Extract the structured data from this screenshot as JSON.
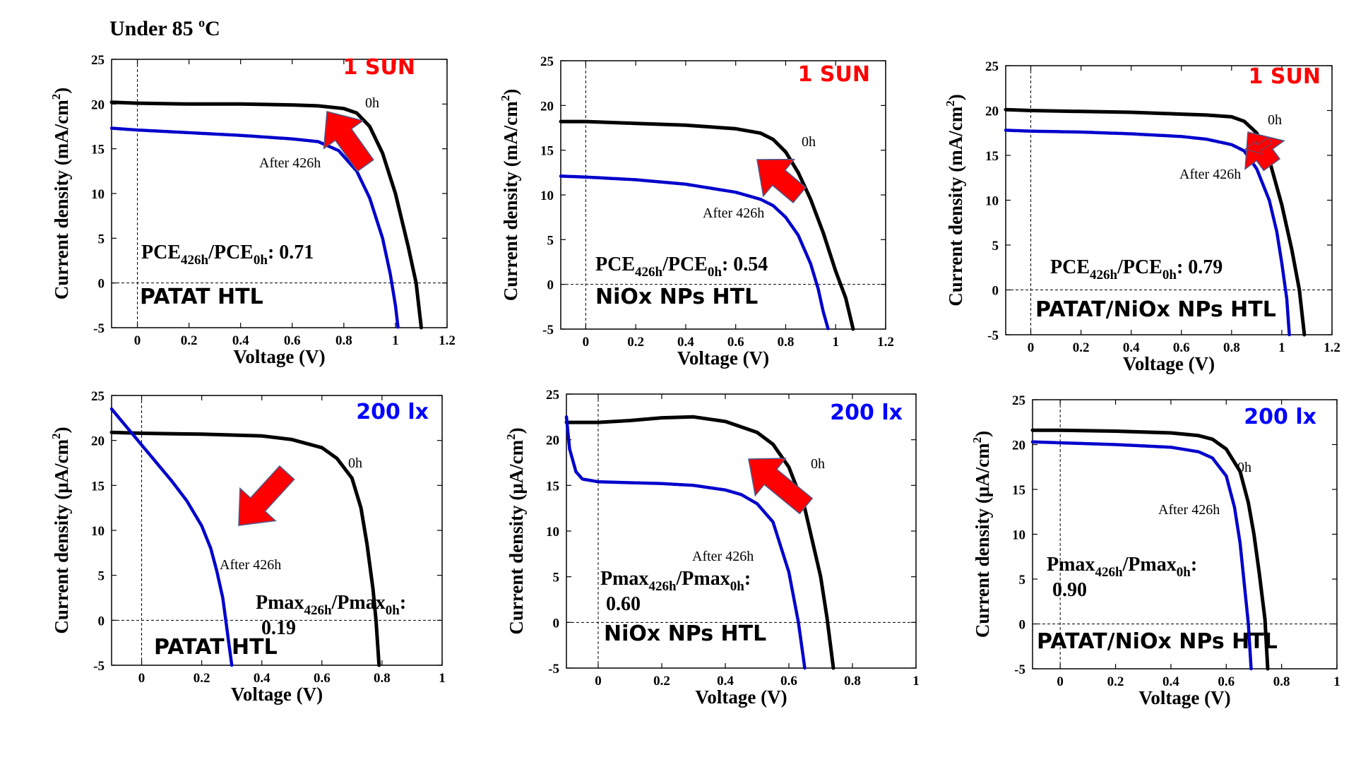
{
  "header": {
    "title": "Under 85 ",
    "title_sup": "o",
    "title_unit": "C"
  },
  "chart_data": [
    {
      "type": "line",
      "condition": "1 SUN",
      "condition_color": "#ff0000",
      "device": "PATAT HTL",
      "metric_base": "PCE",
      "metric_value": "0.71",
      "metric_inline": true,
      "xlabel": "Voltage (V)",
      "ylabel_prefix": "Current density (mA/cm",
      "ylabel_sup": "2",
      "ylabel_suffix": ")",
      "xlim": [
        -0.1,
        1.2
      ],
      "ylim": [
        -5,
        25
      ],
      "xticks": [
        0,
        0.2,
        0.4,
        0.6,
        0.8,
        1,
        1.2
      ],
      "xtick_labels": [
        "0",
        "0.2",
        "0.4",
        "0.6",
        "0.8",
        "1",
        "1.2"
      ],
      "yticks": [
        -5,
        0,
        5,
        10,
        15,
        20,
        25
      ],
      "ytick_labels": [
        "-5",
        "0",
        "5",
        "10",
        "15",
        "20",
        "25"
      ],
      "series": [
        {
          "name": "0h",
          "color": "#000000",
          "x": [
            -0.1,
            0,
            0.2,
            0.4,
            0.6,
            0.7,
            0.8,
            0.85,
            0.9,
            0.95,
            1.0,
            1.05,
            1.08,
            1.1
          ],
          "y": [
            20.2,
            20.1,
            20.0,
            20.0,
            19.9,
            19.8,
            19.5,
            19.0,
            17.5,
            14.5,
            10.0,
            4.0,
            0.0,
            -5.0
          ]
        },
        {
          "name": "After 426h",
          "color": "#0000cc",
          "x": [
            -0.1,
            0,
            0.2,
            0.4,
            0.6,
            0.7,
            0.78,
            0.85,
            0.9,
            0.95,
            0.98,
            1.0,
            1.01
          ],
          "y": [
            17.3,
            17.1,
            16.8,
            16.5,
            16.1,
            15.8,
            14.8,
            12.5,
            9.5,
            5.0,
            1.0,
            -2.5,
            -5.0
          ]
        }
      ]
    },
    {
      "type": "line",
      "condition": "1 SUN",
      "condition_color": "#ff0000",
      "device": "NiOx NPs HTL",
      "metric_base": "PCE",
      "metric_value": "0.54",
      "metric_inline": true,
      "xlabel": "Voltage (V)",
      "ylabel_prefix": "Current density (mA/cm",
      "ylabel_sup": "2",
      "ylabel_suffix": ")",
      "xlim": [
        -0.1,
        1.2
      ],
      "ylim": [
        -5,
        25
      ],
      "xticks": [
        0,
        0.2,
        0.4,
        0.6,
        0.8,
        1,
        1.2
      ],
      "xtick_labels": [
        "0",
        "0.2",
        "0.4",
        "0.6",
        "0.8",
        "1",
        "1.2"
      ],
      "yticks": [
        -5,
        0,
        5,
        10,
        15,
        20,
        25
      ],
      "ytick_labels": [
        "-5",
        "0",
        "5",
        "10",
        "15",
        "20",
        "25"
      ],
      "series": [
        {
          "name": "0h",
          "color": "#000000",
          "x": [
            -0.1,
            0,
            0.2,
            0.4,
            0.6,
            0.7,
            0.75,
            0.8,
            0.85,
            0.9,
            0.95,
            1.0,
            1.04,
            1.07
          ],
          "y": [
            18.2,
            18.2,
            18.0,
            17.8,
            17.4,
            16.9,
            16.2,
            14.8,
            12.5,
            9.5,
            5.8,
            1.5,
            -1.5,
            -5.0
          ]
        },
        {
          "name": "After 426h",
          "color": "#0000cc",
          "x": [
            -0.1,
            0,
            0.2,
            0.4,
            0.6,
            0.7,
            0.75,
            0.8,
            0.85,
            0.9,
            0.93,
            0.95,
            0.97
          ],
          "y": [
            12.1,
            12.0,
            11.7,
            11.2,
            10.3,
            9.5,
            8.8,
            7.5,
            5.5,
            2.3,
            -0.5,
            -3.0,
            -5.0
          ]
        }
      ]
    },
    {
      "type": "line",
      "condition": "1 SUN",
      "condition_color": "#ff0000",
      "device": "PATAT/NiOx NPs HTL",
      "metric_base": "PCE",
      "metric_value": "0.79",
      "metric_inline": true,
      "xlabel": "Voltage (V)",
      "ylabel_prefix": "Current density (mA/cm",
      "ylabel_sup": "2",
      "ylabel_suffix": ")",
      "xlim": [
        -0.1,
        1.2
      ],
      "ylim": [
        -5,
        25
      ],
      "xticks": [
        0,
        0.2,
        0.4,
        0.6,
        0.8,
        1,
        1.2
      ],
      "xtick_labels": [
        "0",
        "0.2",
        "0.4",
        "0.6",
        "0.8",
        "1",
        "1.2"
      ],
      "yticks": [
        -5,
        0,
        5,
        10,
        15,
        20,
        25
      ],
      "ytick_labels": [
        "-5",
        "0",
        "5",
        "10",
        "15",
        "20",
        "25"
      ],
      "series": [
        {
          "name": "0h",
          "color": "#000000",
          "x": [
            -0.1,
            0,
            0.2,
            0.4,
            0.6,
            0.7,
            0.8,
            0.85,
            0.9,
            0.95,
            1.0,
            1.04,
            1.07,
            1.09
          ],
          "y": [
            20.1,
            20.0,
            19.9,
            19.8,
            19.6,
            19.5,
            19.3,
            18.8,
            17.5,
            14.5,
            9.5,
            4.5,
            0.0,
            -5.0
          ]
        },
        {
          "name": "After 426h",
          "color": "#0000cc",
          "x": [
            -0.1,
            0,
            0.2,
            0.4,
            0.6,
            0.7,
            0.8,
            0.85,
            0.9,
            0.95,
            0.98,
            1.0,
            1.02,
            1.03
          ],
          "y": [
            17.8,
            17.7,
            17.6,
            17.4,
            17.1,
            16.8,
            16.2,
            15.5,
            13.5,
            10.0,
            6.5,
            3.0,
            -1.0,
            -5.0
          ]
        }
      ]
    },
    {
      "type": "line",
      "condition": "200 lx",
      "condition_color": "#0000ff",
      "device": "PATAT HTL",
      "metric_base": "Pmax",
      "metric_value": "0.19",
      "metric_inline": false,
      "xlabel": "Voltage (V)",
      "ylabel_prefix": "Current density (μA/cm",
      "ylabel_sup": "2",
      "ylabel_suffix": ")",
      "xlim": [
        -0.1,
        1.0
      ],
      "ylim": [
        -5,
        25
      ],
      "xticks": [
        0,
        0.2,
        0.4,
        0.6,
        0.8,
        1
      ],
      "xtick_labels": [
        "0",
        "0.2",
        "0.4",
        "0.6",
        "0.8",
        "1"
      ],
      "yticks": [
        -5,
        0,
        5,
        10,
        15,
        20,
        25
      ],
      "ytick_labels": [
        "-5",
        "0",
        "5",
        "10",
        "15",
        "20",
        "25"
      ],
      "series": [
        {
          "name": "0h",
          "color": "#000000",
          "x": [
            -0.1,
            0,
            0.2,
            0.4,
            0.5,
            0.6,
            0.65,
            0.7,
            0.73,
            0.75,
            0.77,
            0.78,
            0.79
          ],
          "y": [
            20.9,
            20.8,
            20.7,
            20.5,
            20.1,
            19.2,
            18.0,
            15.8,
            12.5,
            8.5,
            3.5,
            0.0,
            -5.0
          ]
        },
        {
          "name": "After 426h",
          "color": "#0000cc",
          "x": [
            -0.1,
            -0.05,
            0.0,
            0.05,
            0.1,
            0.15,
            0.2,
            0.23,
            0.25,
            0.27,
            0.28,
            0.29,
            0.3
          ],
          "y": [
            23.5,
            21.5,
            19.5,
            17.5,
            15.5,
            13.3,
            10.5,
            8.0,
            5.5,
            2.5,
            0.0,
            -2.5,
            -5.0
          ]
        }
      ]
    },
    {
      "type": "line",
      "condition": "200 lx",
      "condition_color": "#0000ff",
      "device": "NiOx NPs HTL",
      "metric_base": "Pmax",
      "metric_value": "0.60",
      "metric_inline": false,
      "xlabel": "Voltage (V)",
      "ylabel_prefix": "Current density (μA/cm",
      "ylabel_sup": "2",
      "ylabel_suffix": ")",
      "xlim": [
        -0.1,
        1.0
      ],
      "ylim": [
        -5,
        25
      ],
      "xticks": [
        0,
        0.2,
        0.4,
        0.6,
        0.8,
        1
      ],
      "xtick_labels": [
        "0",
        "0.2",
        "0.4",
        "0.6",
        "0.8",
        "1"
      ],
      "yticks": [
        -5,
        0,
        5,
        10,
        15,
        20,
        25
      ],
      "ytick_labels": [
        "-5",
        "0",
        "5",
        "10",
        "15",
        "20",
        "25"
      ],
      "series": [
        {
          "name": "0h",
          "color": "#000000",
          "x": [
            -0.1,
            0,
            0.1,
            0.2,
            0.3,
            0.4,
            0.5,
            0.55,
            0.6,
            0.65,
            0.7,
            0.72,
            0.74
          ],
          "y": [
            21.9,
            21.9,
            22.1,
            22.4,
            22.5,
            22.0,
            20.8,
            19.5,
            17.0,
            12.5,
            5.0,
            0.5,
            -5.0
          ]
        },
        {
          "name": "After 426h",
          "color": "#0000cc",
          "x": [
            -0.1,
            -0.09,
            -0.07,
            -0.05,
            0,
            0.1,
            0.2,
            0.3,
            0.4,
            0.45,
            0.5,
            0.55,
            0.6,
            0.63,
            0.65
          ],
          "y": [
            22.5,
            19.0,
            16.5,
            15.7,
            15.4,
            15.3,
            15.2,
            15.0,
            14.5,
            14.0,
            13.0,
            11.0,
            5.5,
            0.0,
            -5.0
          ]
        }
      ]
    },
    {
      "type": "line",
      "condition": "200 lx",
      "condition_color": "#0000ff",
      "device": "PATAT/NiOx NPs HTL",
      "metric_base": "Pmax",
      "metric_value": "0.90",
      "metric_inline": false,
      "xlabel": "Voltage (V)",
      "ylabel_prefix": "Current density (μA/cm",
      "ylabel_sup": "2",
      "ylabel_suffix": ")",
      "xlim": [
        -0.1,
        1.0
      ],
      "ylim": [
        -5,
        25
      ],
      "xticks": [
        0,
        0.2,
        0.4,
        0.6,
        0.8,
        1
      ],
      "xtick_labels": [
        "0",
        "0.2",
        "0.4",
        "0.6",
        "0.8",
        "1"
      ],
      "yticks": [
        -5,
        0,
        5,
        10,
        15,
        20,
        25
      ],
      "ytick_labels": [
        "-5",
        "0",
        "5",
        "10",
        "15",
        "20",
        "25"
      ],
      "series": [
        {
          "name": "0h",
          "color": "#000000",
          "x": [
            -0.1,
            0,
            0.2,
            0.4,
            0.5,
            0.55,
            0.6,
            0.65,
            0.68,
            0.7,
            0.72,
            0.74,
            0.75
          ],
          "y": [
            21.6,
            21.6,
            21.5,
            21.3,
            21.0,
            20.6,
            19.5,
            17.0,
            13.5,
            10.0,
            5.5,
            0.5,
            -5.0
          ]
        },
        {
          "name": "After 426h",
          "color": "#0000cc",
          "x": [
            -0.1,
            0,
            0.2,
            0.4,
            0.5,
            0.55,
            0.6,
            0.63,
            0.65,
            0.66,
            0.67,
            0.68,
            0.69
          ],
          "y": [
            20.3,
            20.2,
            20.0,
            19.7,
            19.2,
            18.5,
            16.5,
            13.0,
            9.0,
            6.0,
            3.0,
            0.0,
            -5.0
          ]
        }
      ]
    }
  ]
}
